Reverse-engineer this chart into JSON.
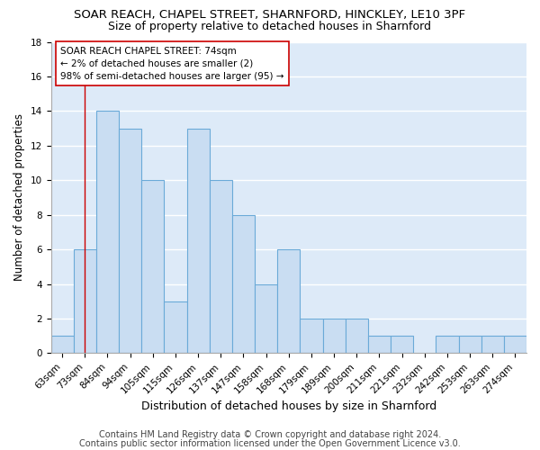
{
  "title1": "SOAR REACH, CHAPEL STREET, SHARNFORD, HINCKLEY, LE10 3PF",
  "title2": "Size of property relative to detached houses in Sharnford",
  "xlabel": "Distribution of detached houses by size in Sharnford",
  "ylabel": "Number of detached properties",
  "footnote_line1": "Contains HM Land Registry data © Crown copyright and database right 2024.",
  "footnote_line2": "Contains public sector information licensed under the Open Government Licence v3.0.",
  "bin_labels": [
    "63sqm",
    "73sqm",
    "84sqm",
    "94sqm",
    "105sqm",
    "115sqm",
    "126sqm",
    "137sqm",
    "147sqm",
    "158sqm",
    "168sqm",
    "179sqm",
    "189sqm",
    "200sqm",
    "211sqm",
    "221sqm",
    "232sqm",
    "242sqm",
    "253sqm",
    "263sqm",
    "274sqm"
  ],
  "bar_values": [
    1,
    6,
    14,
    13,
    10,
    3,
    13,
    10,
    8,
    4,
    6,
    2,
    2,
    2,
    1,
    1,
    0,
    1,
    1,
    1,
    1
  ],
  "bar_color": "#c9ddf2",
  "bar_edge_color": "#6baad8",
  "vline_x": 1,
  "vline_color": "#cc0000",
  "annotation_line1": "SOAR REACH CHAPEL STREET: 74sqm",
  "annotation_line2": "← 2% of detached houses are smaller (2)",
  "annotation_line3": "98% of semi-detached houses are larger (95) →",
  "annotation_box_color": "#ffffff",
  "annotation_box_edge": "#cc0000",
  "ylim": [
    0,
    18
  ],
  "yticks": [
    0,
    2,
    4,
    6,
    8,
    10,
    12,
    14,
    16,
    18
  ],
  "bg_color": "#ddeaf8",
  "grid_color": "#ffffff",
  "fig_bg_color": "#ffffff",
  "title1_fontsize": 9.5,
  "title2_fontsize": 9,
  "ylabel_fontsize": 8.5,
  "xlabel_fontsize": 9,
  "footnote_fontsize": 7,
  "tick_fontsize": 7.5,
  "annotation_fontsize": 7.5
}
